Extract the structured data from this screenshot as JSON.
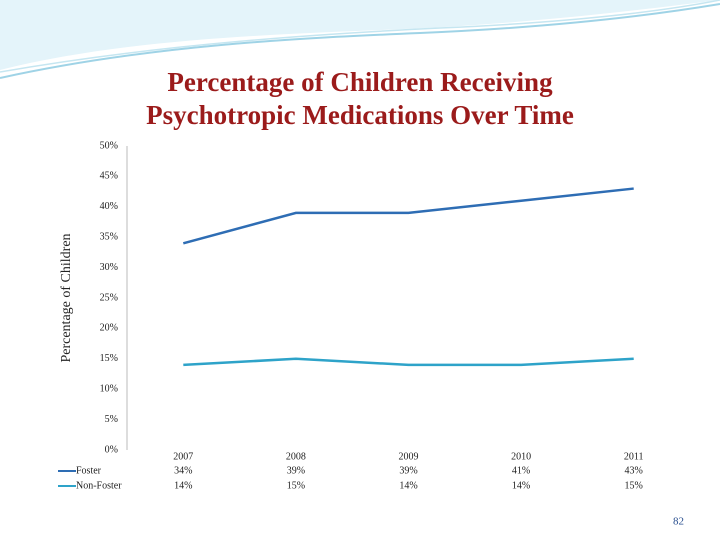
{
  "chart_data": {
    "type": "line",
    "title": "Percentage of Children Receiving Psychotropic Medications  Over Time",
    "y_label": "Percentage of Children",
    "categories": [
      "2007",
      "2008",
      "2009",
      "2010",
      "2011"
    ],
    "series": [
      {
        "name": "Foster",
        "color": "#2e6db4",
        "values": [
          34,
          39,
          39,
          41,
          43
        ],
        "value_labels": [
          "34%",
          "39%",
          "39%",
          "41%",
          "43%"
        ]
      },
      {
        "name": "Non-Foster",
        "color": "#2ea3c9",
        "values": [
          14,
          15,
          14,
          14,
          15
        ],
        "value_labels": [
          "14%",
          "15%",
          "14%",
          "14%",
          "15%"
        ]
      }
    ],
    "ylim": [
      0,
      50
    ],
    "yticks": [
      {
        "value": 0,
        "label": "0%"
      },
      {
        "value": 5,
        "label": "5%"
      },
      {
        "value": 10,
        "label": "10%"
      },
      {
        "value": 15,
        "label": "15%"
      },
      {
        "value": 20,
        "label": "20%"
      },
      {
        "value": 25,
        "label": "25%"
      },
      {
        "value": 30,
        "label": "30%"
      },
      {
        "value": 35,
        "label": "35%"
      },
      {
        "value": 40,
        "label": "40%"
      },
      {
        "value": 45,
        "label": "45%"
      },
      {
        "value": 50,
        "label": "50%"
      }
    ],
    "grid": false,
    "page_number": "82"
  }
}
